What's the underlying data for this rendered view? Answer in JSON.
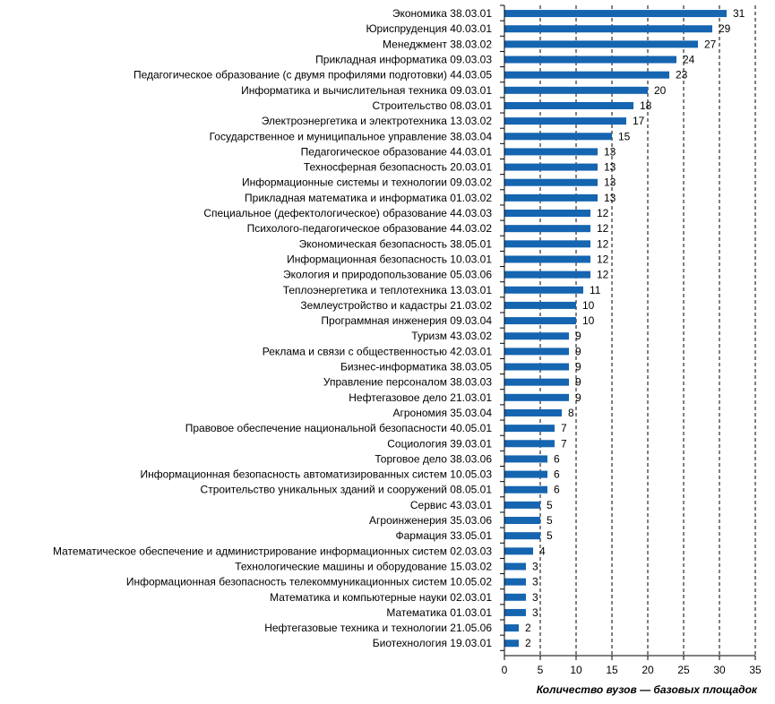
{
  "chart_data": {
    "type": "bar",
    "orientation": "horizontal",
    "xlabel": "Количество вузов — базовых площадок",
    "xlim": [
      0,
      35
    ],
    "xticks": [
      0,
      5,
      10,
      15,
      20,
      25,
      30,
      35
    ],
    "grid": "vertical dashed",
    "bar_color": "#1565b0",
    "show_data_labels": true,
    "categories": [
      "Экономика 38.03.01",
      "Юриспруденция 40.03.01",
      "Менеджмент 38.03.02",
      "Прикладная информатика 09.03.03",
      "Педагогическое образование (с двумя профилями подготовки) 44.03.05",
      "Информатика и вычислительная техника 09.03.01",
      "Строительство 08.03.01",
      "Электроэнергетика и электротехника 13.03.02",
      "Государственное и муниципальное управление 38.03.04",
      "Педагогическое образование 44.03.01",
      "Техносферная безопасность 20.03.01",
      "Информационные системы и технологии 09.03.02",
      "Прикладная математика и информатика 01.03.02",
      "Специальное (дефектологическое) образование 44.03.03",
      "Психолого-педагогическое образование 44.03.02",
      "Экономическая безопасность 38.05.01",
      "Информационная безопасность 10.03.01",
      "Экология и природопользование 05.03.06",
      "Теплоэнергетика и теплотехника 13.03.01",
      "Землеустройство и кадастры 21.03.02",
      "Программная инженерия 09.03.04",
      "Туризм 43.03.02",
      "Реклама и связи с общественностью 42.03.01",
      "Бизнес-информатика 38.03.05",
      "Управление персоналом 38.03.03",
      "Нефтегазовое дело 21.03.01",
      "Агрономия 35.03.04",
      "Правовое обеспечение национальной безопасности 40.05.01",
      "Социология 39.03.01",
      "Торговое дело 38.03.06",
      "Информационная безопасность автоматизированных систем 10.05.03",
      "Строительство уникальных зданий и сооружений 08.05.01",
      "Сервис 43.03.01",
      "Агроинженерия 35.03.06",
      "Фармация 33.05.01",
      "Математическое обеспечение и администрирование информационных систем 02.03.03",
      "Технологические машины и оборудование 15.03.02",
      "Информационная безопасность телекоммуникационных систем 10.05.02",
      "Математика и компьютерные науки 02.03.01",
      "Математика 01.03.01",
      "Нефтегазовые техника и технологии 21.05.06",
      "Биотехнология 19.03.01"
    ],
    "values": [
      31,
      29,
      27,
      24,
      23,
      20,
      18,
      17,
      15,
      13,
      13,
      13,
      13,
      12,
      12,
      12,
      12,
      12,
      11,
      10,
      10,
      9,
      9,
      9,
      9,
      9,
      8,
      7,
      7,
      6,
      6,
      6,
      5,
      5,
      5,
      4,
      3,
      3,
      3,
      3,
      2,
      2
    ]
  }
}
